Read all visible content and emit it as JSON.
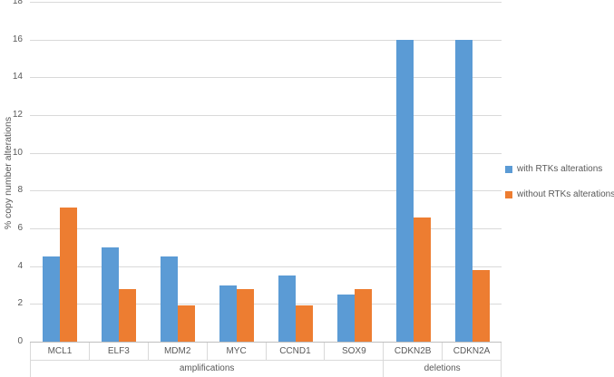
{
  "chart_data": {
    "type": "bar",
    "title": "",
    "ylabel": "% copy number alterations",
    "xlabel": "",
    "ylim": [
      0,
      18
    ],
    "y_ticks": [
      0,
      2,
      4,
      6,
      8,
      10,
      12,
      14,
      16,
      18
    ],
    "grid": true,
    "legend_position": "right",
    "categories": [
      "MCL1",
      "ELF3",
      "MDM2",
      "MYC",
      "CCND1",
      "SOX9",
      "CDKN2B",
      "CDKN2A"
    ],
    "category_groups": [
      {
        "label": "amplifications",
        "span": 6
      },
      {
        "label": "deletions",
        "span": 2
      }
    ],
    "series": [
      {
        "name": "with RTKs alterations",
        "color": "#5B9BD5",
        "values": [
          4.5,
          5.0,
          4.5,
          3.0,
          3.5,
          2.5,
          16.0,
          16.0
        ]
      },
      {
        "name": "without RTKs alterations",
        "color": "#ED7D31",
        "values": [
          7.1,
          2.8,
          1.9,
          2.8,
          1.9,
          2.8,
          6.6,
          3.8
        ]
      }
    ]
  },
  "colors": {
    "gridline": "#d9d9d9",
    "axis_line": "#bfbfbf",
    "text": "#595959"
  }
}
